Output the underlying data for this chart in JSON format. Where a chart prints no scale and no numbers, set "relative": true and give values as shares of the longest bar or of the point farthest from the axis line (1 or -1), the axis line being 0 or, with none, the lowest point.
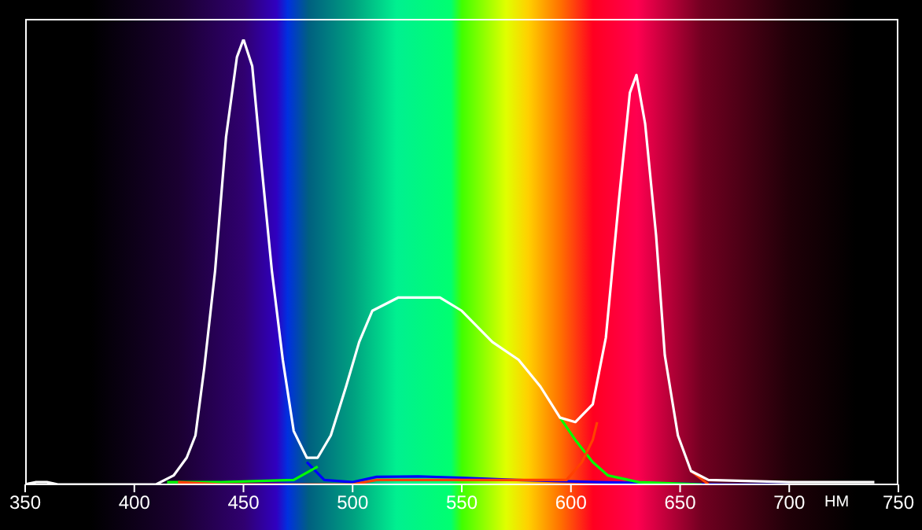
{
  "chart_data": {
    "type": "line",
    "xlabel": "НМ",
    "relative": true,
    "xlim": [
      350,
      750
    ],
    "xticks": [
      350,
      400,
      450,
      500,
      550,
      600,
      650,
      700,
      750
    ],
    "marker": "none",
    "line_style": "solid",
    "series": [
      {
        "color": "#0000ff",
        "x": [
          479,
          487,
          500,
          511,
          530,
          550,
          575,
          613,
          670,
          700
        ],
        "values": [
          0.05,
          0.01,
          0.005,
          0.017,
          0.018,
          0.015,
          0.01,
          0.005,
          0,
          0
        ]
      },
      {
        "color": "#00ff00",
        "x": [
          415,
          440,
          473,
          484,
          490,
          497,
          503,
          509,
          521,
          535,
          550,
          564,
          576,
          586,
          595,
          602,
          610,
          617,
          631,
          660
        ],
        "values": [
          0.005,
          0.005,
          0.01,
          0.04,
          null,
          null,
          null,
          null,
          null,
          null,
          null,
          null,
          null,
          null,
          0.15,
          0.1,
          0.05,
          0.02,
          0.005,
          0
        ]
      },
      {
        "color": "#ff4000",
        "x": [
          420,
          440,
          500,
          511,
          564,
          590,
          598,
          605,
          610,
          612,
          616,
          622,
          627,
          630,
          634,
          639,
          643,
          649,
          655,
          663
        ],
        "values": [
          0.005,
          0,
          0,
          0.01,
          0.01,
          0.01,
          0.01,
          0.05,
          0.1,
          0.14,
          null,
          null,
          null,
          null,
          null,
          null,
          null,
          null,
          0.03,
          0
        ]
      },
      {
        "color": "#ffffff",
        "x": [
          350,
          355,
          360,
          365,
          410,
          418,
          424,
          428,
          432,
          437,
          442,
          447,
          450,
          454,
          458,
          463,
          468,
          473,
          479,
          484,
          490,
          497,
          503,
          509,
          521,
          535,
          540,
          550,
          564,
          576,
          586,
          595,
          602,
          610,
          616,
          622,
          627,
          630,
          634,
          639,
          643,
          649,
          655,
          663,
          700,
          739
        ],
        "values": [
          0,
          0.005,
          0.005,
          0,
          0,
          0.02,
          0.06,
          0.11,
          0.26,
          0.48,
          0.78,
          0.96,
          1.0,
          0.94,
          0.73,
          0.48,
          0.28,
          0.12,
          0.06,
          0.06,
          0.11,
          0.22,
          0.32,
          0.39,
          0.42,
          0.42,
          0.42,
          0.39,
          0.32,
          0.28,
          0.22,
          0.15,
          0.14,
          0.18,
          0.33,
          0.64,
          0.88,
          0.92,
          0.81,
          0.56,
          0.29,
          0.11,
          0.03,
          0.01,
          0.005,
          0.005
        ]
      }
    ]
  }
}
